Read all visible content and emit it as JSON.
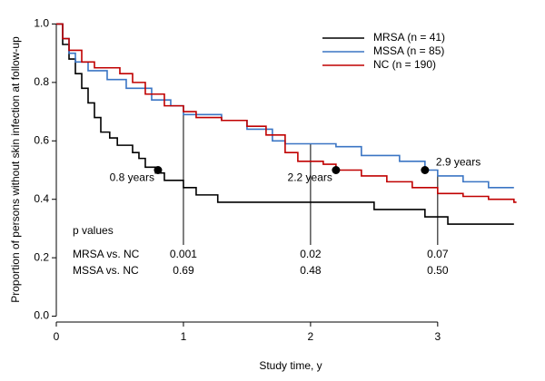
{
  "chart_data": {
    "type": "step",
    "x_label": "Study time, y",
    "y_label": "Proportion of persons without skin infection at follow-up",
    "xlim": [
      0,
      3.73
    ],
    "ylim": [
      -0.02,
      1.02
    ],
    "xticks": [
      0,
      1,
      2,
      3
    ],
    "yticks": [
      {
        "value": 0,
        "label": "0.0"
      },
      0.2,
      0.4,
      0.6,
      0.8,
      {
        "value": 1,
        "label": "1.0"
      }
    ],
    "legend": "upper right",
    "series": [
      {
        "name": "MRSA (n = 41)",
        "color": "#000000",
        "x": [
          0,
          0.05,
          0.1,
          0.15,
          0.2,
          0.25,
          0.3,
          0.35,
          0.42,
          0.48,
          0.6,
          0.65,
          0.7,
          0.78,
          0.85,
          1.0,
          1.1,
          1.27,
          2.5,
          2.9,
          3.08,
          3.6
        ],
        "values": [
          1.0,
          0.93,
          0.88,
          0.83,
          0.78,
          0.73,
          0.68,
          0.63,
          0.61,
          0.585,
          0.56,
          0.54,
          0.51,
          0.49,
          0.465,
          0.44,
          0.415,
          0.39,
          0.365,
          0.34,
          0.315,
          0.315
        ]
      },
      {
        "name": "MSSA (n = 85)",
        "color": "#3a75c4",
        "x": [
          0,
          0.05,
          0.1,
          0.15,
          0.25,
          0.4,
          0.55,
          0.75,
          0.9,
          1.0,
          1.3,
          1.5,
          1.7,
          1.8,
          2.2,
          2.4,
          2.7,
          2.9,
          3.0,
          3.2,
          3.4,
          3.6
        ],
        "values": [
          1.0,
          0.95,
          0.9,
          0.87,
          0.84,
          0.81,
          0.78,
          0.74,
          0.72,
          0.69,
          0.67,
          0.64,
          0.6,
          0.59,
          0.58,
          0.55,
          0.53,
          0.5,
          0.48,
          0.46,
          0.44,
          0.44
        ]
      },
      {
        "name": "NC (n = 190)",
        "color": "#c00000",
        "x": [
          0,
          0.05,
          0.1,
          0.2,
          0.3,
          0.5,
          0.6,
          0.7,
          0.85,
          1.0,
          1.1,
          1.3,
          1.5,
          1.65,
          1.8,
          1.9,
          2.1,
          2.2,
          2.4,
          2.6,
          2.8,
          3.0,
          3.2,
          3.4,
          3.6,
          3.62
        ],
        "values": [
          1.0,
          0.95,
          0.91,
          0.87,
          0.85,
          0.83,
          0.8,
          0.76,
          0.72,
          0.7,
          0.68,
          0.67,
          0.65,
          0.62,
          0.56,
          0.53,
          0.52,
          0.5,
          0.48,
          0.46,
          0.44,
          0.42,
          0.41,
          0.4,
          0.39,
          0.39
        ]
      }
    ],
    "medians": [
      {
        "text": "0.8 years",
        "x": 0.8,
        "y": 0.5,
        "label_side": "left"
      },
      {
        "text": "2.2 years",
        "x": 2.2,
        "y": 0.5,
        "label_side": "left"
      },
      {
        "text": "2.9 years",
        "x": 2.9,
        "y": 0.5,
        "label_side": "right"
      }
    ],
    "p_values": {
      "title": "p values",
      "times": [
        1,
        2,
        3
      ],
      "rows": [
        {
          "label": "MRSA vs. NC",
          "values": [
            "0.001",
            "0.02",
            "0.07"
          ]
        },
        {
          "label": "MSSA vs. NC",
          "values": [
            "0.69",
            "0.48",
            "0.50"
          ]
        }
      ]
    }
  }
}
